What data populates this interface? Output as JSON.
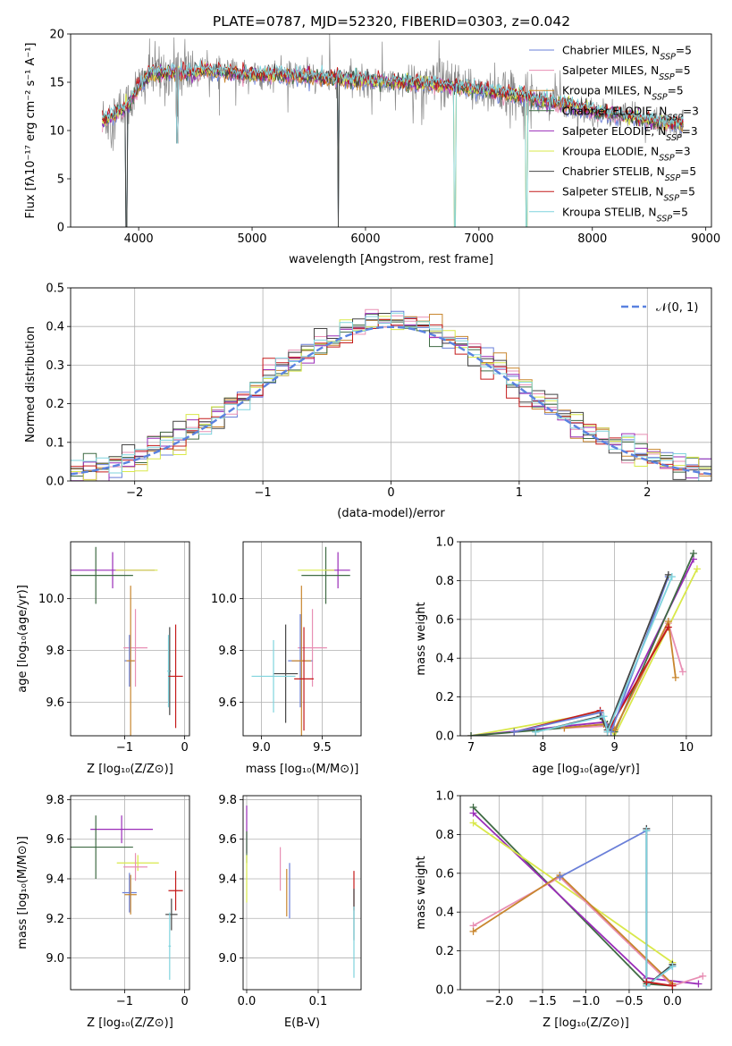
{
  "figure_title": "PLATE=0787, MJD=52320, FIBERID=0303, z=0.042",
  "colors": {
    "Chabrier MILES": "#6a7fd8",
    "Salpeter MILES": "#e88fb4",
    "Kroupa MILES": "#c8862e",
    "Chabrier ELODIE": "#3f6b44",
    "Salpeter ELODIE": "#9a2cb8",
    "Kroupa ELODIE": "#d9e84a",
    "Chabrier STELIB": "#444444",
    "Salpeter STELIB": "#c41a1a",
    "Kroupa STELIB": "#7fd3dd"
  },
  "chart_data": [
    {
      "id": "spectrum",
      "type": "line",
      "title": "",
      "xlabel": "wavelength [Angstrom, rest frame]",
      "ylabel": "Flux [fλ10⁻¹⁷ erg cm⁻² s⁻¹ A⁻¹]",
      "xlim": [
        3400,
        9050
      ],
      "ylim": [
        0,
        20
      ],
      "xticks": [
        4000,
        5000,
        6000,
        7000,
        8000,
        9000
      ],
      "yticks": [
        0,
        5,
        10,
        15,
        20
      ],
      "legend_position": "top-right",
      "legend": [
        {
          "base": "Chabrier MILES, N",
          "sub": "SSP",
          "tail": "=5"
        },
        {
          "base": "Salpeter MILES, N",
          "sub": "SSP",
          "tail": "=5"
        },
        {
          "base": "Kroupa MILES, N",
          "sub": "SSP",
          "tail": "=5"
        },
        {
          "base": "Chabrier ELODIE, N",
          "sub": "SSP",
          "tail": "=3"
        },
        {
          "base": "Salpeter ELODIE, N",
          "sub": "SSP",
          "tail": "=3"
        },
        {
          "base": "Kroupa ELODIE, N",
          "sub": "SSP",
          "tail": "=3"
        },
        {
          "base": "Chabrier STELIB, N",
          "sub": "SSP",
          "tail": "=5"
        },
        {
          "base": "Salpeter STELIB, N",
          "sub": "SSP",
          "tail": "=5"
        },
        {
          "base": "Kroupa STELIB, N",
          "sub": "SSP",
          "tail": "=5"
        }
      ],
      "data_series": {
        "name": "data",
        "color": "#888888"
      },
      "continuum_x": [
        3680,
        3800,
        3900,
        4000,
        4100,
        4200,
        4400,
        4600,
        4800,
        5000,
        5200,
        5400,
        5600,
        5800,
        6000,
        6200,
        6400,
        6600,
        6800,
        7000,
        7200,
        7400,
        7600,
        7800,
        8000,
        8200,
        8400,
        8600,
        8800
      ],
      "continuum_y": [
        11.0,
        11.8,
        12.5,
        14.5,
        15.8,
        16.0,
        16.0,
        16.2,
        16.0,
        15.8,
        15.8,
        15.6,
        15.5,
        15.3,
        15.2,
        15.0,
        14.9,
        14.7,
        14.5,
        14.2,
        13.9,
        13.5,
        13.0,
        12.6,
        12.0,
        11.7,
        11.3,
        10.8,
        10.6
      ],
      "absorption_dips": [
        {
          "x": 3890,
          "y": 0
        },
        {
          "x": 4340,
          "y": 8.7
        },
        {
          "x": 5760,
          "y": 0
        },
        {
          "x": 6790,
          "y": 0
        },
        {
          "x": 7420,
          "y": 0
        }
      ]
    },
    {
      "id": "residuals",
      "type": "line",
      "xlabel": "(data-model)/error",
      "ylabel": "Normed distribution",
      "xlim": [
        -2.5,
        2.5
      ],
      "ylim": [
        0,
        0.5
      ],
      "xticks": [
        -2,
        -1,
        0,
        1,
        2
      ],
      "yticks": [
        0.0,
        0.1,
        0.2,
        0.3,
        0.4,
        0.5
      ],
      "grid": true,
      "legend_position": "top-right",
      "legend_label": "𝒩(0, 1)",
      "reference_curve": {
        "name": "N(0,1)",
        "color": "#5a82e0",
        "mean": 0,
        "sigma": 1
      }
    },
    {
      "id": "age-vs-Z",
      "type": "scatter",
      "xlabel": "Z [log₁₀(Z/Z⊙)]",
      "ylabel": "age  [log₁₀(age/yr)]",
      "xlim": [
        -1.9,
        0.08
      ],
      "ylim": [
        9.47,
        10.22
      ],
      "xticks": [
        -1,
        0
      ],
      "yticks": [
        9.6,
        9.8,
        10.0
      ],
      "grid": true,
      "points": [
        {
          "series": "Salpeter ELODIE",
          "x": -1.2,
          "y": 10.11,
          "xerr": 0.7,
          "yerr": 0.07
        },
        {
          "series": "Chabrier ELODIE",
          "x": -1.48,
          "y": 10.09,
          "xerr": 0.62,
          "yerr": 0.11
        },
        {
          "series": "Kroupa ELODIE",
          "x": -0.8,
          "y": 10.11,
          "xerr": 0.35,
          "yerr": 0.0
        },
        {
          "series": "Salpeter MILES",
          "x": -0.82,
          "y": 9.81,
          "xerr": 0.2,
          "yerr": 0.15
        },
        {
          "series": "Chabrier MILES",
          "x": -0.92,
          "y": 9.76,
          "xerr": 0.08,
          "yerr": 0.1
        },
        {
          "series": "Kroupa MILES",
          "x": -0.9,
          "y": 9.76,
          "xerr": 0.07,
          "yerr": 0.29
        },
        {
          "series": "Chabrier STELIB",
          "x": -0.25,
          "y": 9.72,
          "xerr": 0.02,
          "yerr": 0.17
        },
        {
          "series": "Kroupa STELIB",
          "x": -0.27,
          "y": 9.72,
          "xerr": 0.02,
          "yerr": 0.14
        },
        {
          "series": "Salpeter STELIB",
          "x": -0.15,
          "y": 9.7,
          "xerr": 0.12,
          "yerr": 0.2
        }
      ]
    },
    {
      "id": "age-vs-mass",
      "type": "scatter",
      "xlabel": "mass [log₁₀(M/M⊙)]",
      "ylabel": "",
      "xlim": [
        8.85,
        9.82
      ],
      "ylim": [
        9.47,
        10.22
      ],
      "xticks": [
        9.0,
        9.5
      ],
      "yticks": [
        9.6,
        9.8,
        10.0
      ],
      "grid": true,
      "points": [
        {
          "series": "Salpeter ELODIE",
          "x": 9.63,
          "y": 10.11,
          "xerr": 0.1,
          "yerr": 0.07
        },
        {
          "series": "Chabrier ELODIE",
          "x": 9.53,
          "y": 10.09,
          "xerr": 0.2,
          "yerr": 0.11
        },
        {
          "series": "Kroupa ELODIE",
          "x": 9.45,
          "y": 10.11,
          "xerr": 0.15,
          "yerr": 0.0
        },
        {
          "series": "Salpeter MILES",
          "x": 9.42,
          "y": 9.81,
          "xerr": 0.12,
          "yerr": 0.15
        },
        {
          "series": "Chabrier MILES",
          "x": 9.32,
          "y": 9.76,
          "xerr": 0.1,
          "yerr": 0.18
        },
        {
          "series": "Kroupa MILES",
          "x": 9.33,
          "y": 9.76,
          "xerr": 0.08,
          "yerr": 0.29
        },
        {
          "series": "Chabrier STELIB",
          "x": 9.2,
          "y": 9.71,
          "xerr": 0.1,
          "yerr": 0.19
        },
        {
          "series": "Kroupa STELIB",
          "x": 9.1,
          "y": 9.7,
          "xerr": 0.18,
          "yerr": 0.14
        },
        {
          "series": "Salpeter STELIB",
          "x": 9.35,
          "y": 9.69,
          "xerr": 0.08,
          "yerr": 0.2
        }
      ]
    },
    {
      "id": "weight-vs-age",
      "type": "line",
      "xlabel": "age  [log₁₀(age/yr)]",
      "ylabel": "mass weight",
      "xlim": [
        6.85,
        10.35
      ],
      "ylim": [
        0,
        1.0
      ],
      "xticks": [
        7,
        8,
        9,
        10
      ],
      "yticks": [
        0.0,
        0.2,
        0.4,
        0.6,
        0.8,
        1.0
      ],
      "grid": true,
      "series": [
        {
          "name": "Kroupa ELODIE",
          "x": [
            7.0,
            8.8,
            9.0,
            10.15
          ],
          "y": [
            0.0,
            0.12,
            0.0,
            0.86
          ]
        },
        {
          "name": "Salpeter ELODIE",
          "x": [
            7.0,
            8.85,
            8.95,
            10.1
          ],
          "y": [
            0.0,
            0.07,
            0.04,
            0.91
          ]
        },
        {
          "name": "Chabrier ELODIE",
          "x": [
            7.0,
            8.9,
            9.0,
            10.1
          ],
          "y": [
            0.0,
            0.06,
            0.02,
            0.94
          ]
        },
        {
          "name": "Salpeter MILES",
          "x": [
            8.3,
            8.9,
            9.0,
            9.75,
            9.95
          ],
          "y": [
            0.04,
            0.05,
            0.03,
            0.58,
            0.33
          ]
        },
        {
          "name": "Kroupa MILES",
          "x": [
            8.3,
            8.85,
            9.0,
            9.75,
            9.85
          ],
          "y": [
            0.04,
            0.06,
            0.03,
            0.59,
            0.3
          ]
        },
        {
          "name": "Salpeter STELIB",
          "x": [
            7.6,
            8.8,
            8.9,
            9.75
          ],
          "y": [
            0.02,
            0.13,
            0.02,
            0.56
          ]
        },
        {
          "name": "Chabrier MILES",
          "x": [
            7.6,
            8.8,
            8.95,
            9.75
          ],
          "y": [
            0.02,
            0.12,
            0.02,
            0.82
          ]
        },
        {
          "name": "Chabrier STELIB",
          "x": [
            7.9,
            8.8,
            8.9,
            9.75
          ],
          "y": [
            0.02,
            0.1,
            0.03,
            0.83
          ]
        },
        {
          "name": "Kroupa STELIB",
          "x": [
            7.9,
            8.85,
            8.9,
            9.8
          ],
          "y": [
            0.02,
            0.1,
            0.02,
            0.82
          ]
        }
      ]
    },
    {
      "id": "mass-vs-Z",
      "type": "scatter",
      "xlabel": "Z [log₁₀(Z/Z⊙)]",
      "ylabel": "mass [log₁₀(M/M⊙)]",
      "xlim": [
        -1.9,
        0.08
      ],
      "ylim": [
        8.84,
        9.82
      ],
      "xticks": [
        -1,
        0
      ],
      "yticks": [
        9.0,
        9.2,
        9.4,
        9.6,
        9.8
      ],
      "grid": true,
      "points": [
        {
          "series": "Salpeter ELODIE",
          "x": -1.05,
          "y": 9.65,
          "xerr": 0.52,
          "yerr": 0.07
        },
        {
          "series": "Chabrier ELODIE",
          "x": -1.48,
          "y": 9.56,
          "xerr": 0.62,
          "yerr": 0.16
        },
        {
          "series": "Kroupa ELODIE",
          "x": -0.78,
          "y": 9.48,
          "xerr": 0.35,
          "yerr": 0.04
        },
        {
          "series": "Salpeter MILES",
          "x": -0.82,
          "y": 9.46,
          "xerr": 0.2,
          "yerr": 0.07
        },
        {
          "series": "Chabrier MILES",
          "x": -0.92,
          "y": 9.33,
          "xerr": 0.12,
          "yerr": 0.1
        },
        {
          "series": "Kroupa MILES",
          "x": -0.9,
          "y": 9.32,
          "xerr": 0.1,
          "yerr": 0.1
        },
        {
          "series": "Salpeter STELIB",
          "x": -0.15,
          "y": 9.34,
          "xerr": 0.12,
          "yerr": 0.1
        },
        {
          "series": "Chabrier STELIB",
          "x": -0.22,
          "y": 9.22,
          "xerr": 0.1,
          "yerr": 0.08
        },
        {
          "series": "Kroupa STELIB",
          "x": -0.25,
          "y": 9.06,
          "xerr": 0.02,
          "yerr": 0.17
        }
      ]
    },
    {
      "id": "mass-vs-EBV",
      "type": "scatter",
      "xlabel": "E(B-V)",
      "ylabel": "",
      "xlim": [
        -0.005,
        0.16
      ],
      "ylim": [
        8.84,
        9.82
      ],
      "xticks": [
        0.0,
        0.1
      ],
      "yticks": [
        9.0,
        9.2,
        9.4,
        9.6,
        9.8
      ],
      "grid": true,
      "points": [
        {
          "series": "Salpeter ELODIE",
          "x": 0.0,
          "y": 9.65,
          "xerr": 0,
          "yerr": 0.12
        },
        {
          "series": "Chabrier ELODIE",
          "x": 0.0,
          "y": 9.56,
          "xerr": 0,
          "yerr": 0.08
        },
        {
          "series": "Kroupa ELODIE",
          "x": 0.0,
          "y": 9.4,
          "xerr": 0,
          "yerr": 0.12
        },
        {
          "series": "Salpeter MILES",
          "x": 0.047,
          "y": 9.45,
          "xerr": 0,
          "yerr": 0.11
        },
        {
          "series": "Chabrier MILES",
          "x": 0.06,
          "y": 9.34,
          "xerr": 0,
          "yerr": 0.14
        },
        {
          "series": "Kroupa MILES",
          "x": 0.056,
          "y": 9.33,
          "xerr": 0,
          "yerr": 0.12
        },
        {
          "series": "Salpeter STELIB",
          "x": 0.15,
          "y": 9.34,
          "xerr": 0,
          "yerr": 0.1
        },
        {
          "series": "Chabrier STELIB",
          "x": 0.15,
          "y": 9.22,
          "xerr": 0,
          "yerr": 0.13
        },
        {
          "series": "Kroupa STELIB",
          "x": 0.15,
          "y": 9.08,
          "xerr": 0,
          "yerr": 0.18
        }
      ]
    },
    {
      "id": "weight-vs-Z",
      "type": "line",
      "xlabel": "Z [log₁₀(Z/Z⊙)]",
      "ylabel": "mass weight",
      "xlim": [
        -2.45,
        0.45
      ],
      "ylim": [
        0,
        1.0
      ],
      "xticks": [
        -2.0,
        -1.5,
        -1.0,
        -0.5,
        0.0
      ],
      "yticks": [
        0.0,
        0.2,
        0.4,
        0.6,
        0.8,
        1.0
      ],
      "grid": true,
      "series": [
        {
          "name": "Chabrier ELODIE",
          "x": [
            -2.3,
            -0.3,
            0.0
          ],
          "y": [
            0.94,
            0.03,
            0.02
          ]
        },
        {
          "name": "Salpeter ELODIE",
          "x": [
            -2.3,
            -0.3,
            0.3
          ],
          "y": [
            0.91,
            0.06,
            0.03
          ]
        },
        {
          "name": "Kroupa ELODIE",
          "x": [
            -2.3,
            0.0
          ],
          "y": [
            0.86,
            0.14
          ]
        },
        {
          "name": "Salpeter MILES",
          "x": [
            -2.3,
            -1.3,
            0.0,
            0.35
          ],
          "y": [
            0.33,
            0.58,
            0.02,
            0.07
          ]
        },
        {
          "name": "Kroupa MILES",
          "x": [
            -2.3,
            -1.3,
            0.0
          ],
          "y": [
            0.3,
            0.59,
            0.03
          ]
        },
        {
          "name": "Chabrier MILES",
          "x": [
            -1.3,
            -0.3,
            -0.3,
            0.0
          ],
          "y": [
            0.58,
            0.82,
            0.02,
            0.12
          ]
        },
        {
          "name": "Chabrier STELIB",
          "x": [
            -0.3,
            -0.3,
            0.0
          ],
          "y": [
            0.83,
            0.02,
            0.13
          ]
        },
        {
          "name": "Kroupa STELIB",
          "x": [
            -0.3,
            -0.3,
            0.0
          ],
          "y": [
            0.82,
            0.02,
            0.12
          ]
        },
        {
          "name": "Salpeter STELIB",
          "x": [
            -0.3,
            0.0
          ],
          "y": [
            0.04,
            0.02
          ]
        }
      ]
    }
  ]
}
